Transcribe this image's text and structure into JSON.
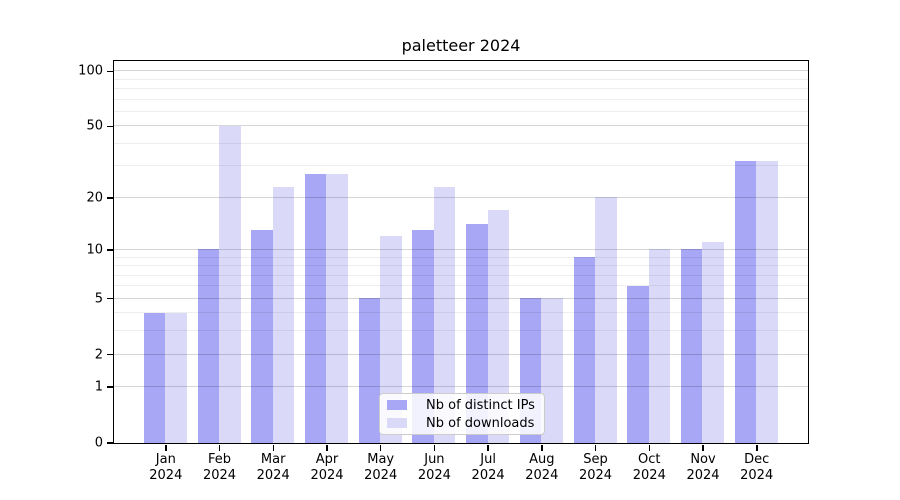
{
  "chart_data": {
    "type": "bar",
    "title": "paletteer 2024",
    "categories": [
      "Jan 2024",
      "Feb 2024",
      "Mar 2024",
      "Apr 2024",
      "May 2024",
      "Jun 2024",
      "Jul 2024",
      "Aug 2024",
      "Sep 2024",
      "Oct 2024",
      "Nov 2024",
      "Dec 2024"
    ],
    "series": [
      {
        "name": "Nb of distinct IPs",
        "color": "#a7a7f5",
        "values": [
          4,
          10,
          13,
          27,
          5,
          13,
          14,
          5,
          9,
          6,
          10,
          32
        ]
      },
      {
        "name": "Nb of downloads",
        "color": "#dadaf8",
        "values": [
          4,
          50,
          23,
          27,
          12,
          23,
          17,
          5,
          20,
          10,
          11,
          32
        ]
      }
    ],
    "xlabel": "",
    "ylabel": "",
    "yscale": "log1p",
    "ylim": [
      0,
      113
    ],
    "yticks": [
      0,
      1,
      2,
      5,
      10,
      20,
      50,
      100
    ],
    "minor_yticks": [
      3,
      4,
      6,
      7,
      8,
      9,
      30,
      40,
      60,
      70,
      80,
      90
    ],
    "grid": "horizontal",
    "legend_position": "lower-center",
    "colors": {
      "axis": "#000000",
      "major_grid": "#d4d4d4",
      "minor_grid": "#ededed",
      "background": "#ffffff"
    }
  }
}
